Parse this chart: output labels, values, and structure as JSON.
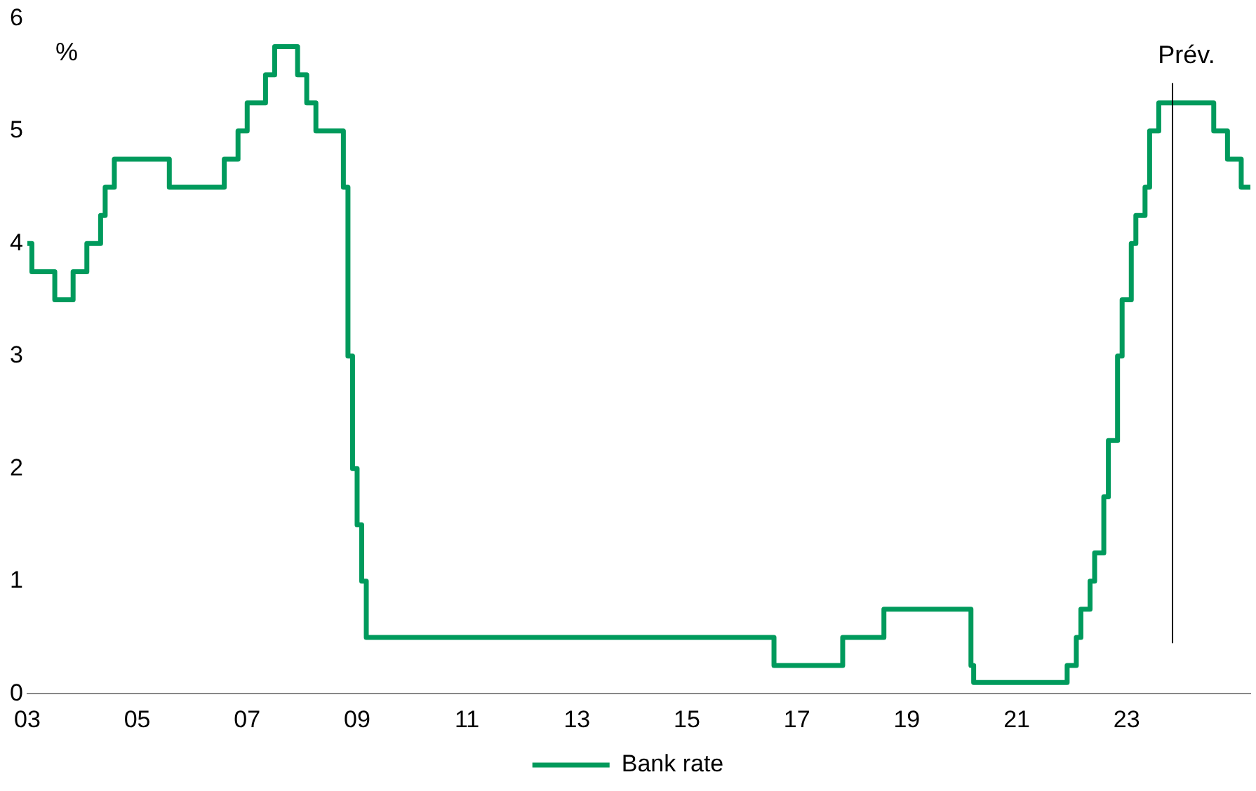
{
  "chart_data": {
    "type": "step",
    "ylabel": "%",
    "x": [
      "2003-01",
      "2003-02",
      "2003-07",
      "2003-11",
      "2004-02",
      "2004-05",
      "2004-06",
      "2004-08",
      "2005-08",
      "2006-08",
      "2006-11",
      "2007-01",
      "2007-05",
      "2007-07",
      "2007-12",
      "2008-02",
      "2008-04",
      "2008-10",
      "2008-11",
      "2008-12",
      "2009-01",
      "2009-02",
      "2009-03",
      "2016-08",
      "2017-11",
      "2018-08",
      "2020-03",
      "2020-03-19",
      "2021-12",
      "2022-02",
      "2022-03",
      "2022-05",
      "2022-06",
      "2022-08",
      "2022-09",
      "2022-11",
      "2022-12",
      "2023-02",
      "2023-03",
      "2023-05",
      "2023-06",
      "2023-08",
      "2024-08",
      "2024-11",
      "2025-02",
      "2025-04"
    ],
    "series": [
      {
        "name": "Bank rate",
        "color": "#009a5c",
        "values": [
          4.0,
          3.75,
          3.5,
          3.75,
          4.0,
          4.25,
          4.5,
          4.75,
          4.5,
          4.75,
          5.0,
          5.25,
          5.5,
          5.75,
          5.5,
          5.25,
          5.0,
          4.5,
          3.0,
          2.0,
          1.5,
          1.0,
          0.5,
          0.25,
          0.5,
          0.75,
          0.25,
          0.1,
          0.25,
          0.5,
          0.75,
          1.0,
          1.25,
          1.75,
          2.25,
          3.0,
          3.5,
          4.0,
          4.25,
          4.5,
          5.0,
          5.25,
          5.0,
          4.75,
          4.5,
          4.5
        ]
      }
    ],
    "xlim": [
      "2003",
      "2025-04"
    ],
    "xticks": [
      {
        "value": "2003",
        "label": "03"
      },
      {
        "value": "2005",
        "label": "05"
      },
      {
        "value": "2007",
        "label": "07"
      },
      {
        "value": "2009",
        "label": "09"
      },
      {
        "value": "2011",
        "label": "11"
      },
      {
        "value": "2013",
        "label": "13"
      },
      {
        "value": "2015",
        "label": "15"
      },
      {
        "value": "2017",
        "label": "17"
      },
      {
        "value": "2019",
        "label": "19"
      },
      {
        "value": "2021",
        "label": "21"
      },
      {
        "value": "2023",
        "label": "23"
      }
    ],
    "ylim": [
      0,
      6
    ],
    "yticks": [
      0,
      1,
      2,
      3,
      4,
      5,
      6
    ],
    "ref_lines": [
      {
        "axis": "x",
        "value": "2023-11",
        "label": "Prév.",
        "color": "#000000"
      }
    ],
    "grid": false,
    "legend": "bottom",
    "marker": "none",
    "line_style": "solid"
  }
}
